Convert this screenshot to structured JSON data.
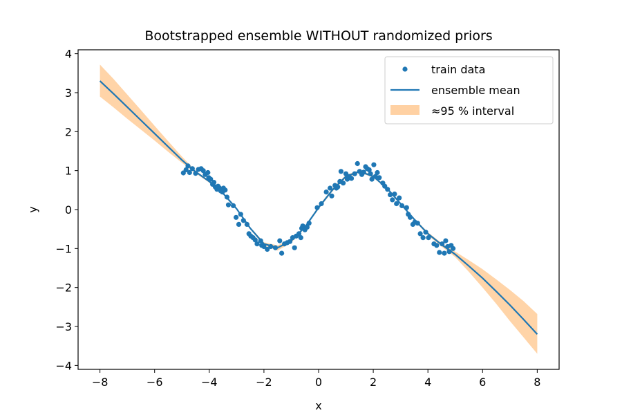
{
  "chart_data": {
    "type": "scatter",
    "title": "Bootstrapped ensemble WITHOUT randomized priors",
    "xlabel": "x",
    "ylabel": "y",
    "xlim": [
      -8.8,
      8.8
    ],
    "ylim": [
      -4.1,
      4.1
    ],
    "xticks": [
      -8,
      -6,
      -4,
      -2,
      0,
      2,
      4,
      6,
      8
    ],
    "yticks": [
      -4,
      -3,
      -2,
      -1,
      0,
      1,
      2,
      3,
      4
    ],
    "tick_labels_x": [
      "−8",
      "−6",
      "−4",
      "−2",
      "0",
      "2",
      "4",
      "6",
      "8"
    ],
    "tick_labels_y": [
      "−4",
      "−3",
      "−2",
      "−1",
      "0",
      "1",
      "2",
      "3",
      "4"
    ],
    "legend_position": "upper-right",
    "colors": {
      "points": "#1f77b4",
      "mean": "#1f77b4",
      "band": "#ffcc99"
    },
    "series": [
      {
        "name": "train data",
        "kind": "scatter",
        "points": [
          [
            -4.95,
            0.94
          ],
          [
            -4.85,
            1.02
          ],
          [
            -4.78,
            1.12
          ],
          [
            -4.72,
            0.95
          ],
          [
            -4.62,
            1.05
          ],
          [
            -4.5,
            0.93
          ],
          [
            -4.4,
            1.03
          ],
          [
            -4.3,
            1.05
          ],
          [
            -4.22,
            1.0
          ],
          [
            -4.15,
            0.9
          ],
          [
            -4.05,
            0.95
          ],
          [
            -4.02,
            0.82
          ],
          [
            -3.95,
            0.78
          ],
          [
            -3.88,
            0.65
          ],
          [
            -3.83,
            0.7
          ],
          [
            -3.78,
            0.58
          ],
          [
            -3.72,
            0.52
          ],
          [
            -3.68,
            0.6
          ],
          [
            -3.62,
            0.55
          ],
          [
            -3.58,
            0.48
          ],
          [
            -3.52,
            0.45
          ],
          [
            -3.48,
            0.55
          ],
          [
            -3.42,
            0.5
          ],
          [
            -3.35,
            0.32
          ],
          [
            -3.3,
            0.12
          ],
          [
            -3.12,
            0.1
          ],
          [
            -3.02,
            -0.2
          ],
          [
            -2.92,
            -0.38
          ],
          [
            -2.85,
            -0.12
          ],
          [
            -2.75,
            -0.28
          ],
          [
            -2.62,
            -0.38
          ],
          [
            -2.55,
            -0.62
          ],
          [
            -2.48,
            -0.68
          ],
          [
            -2.4,
            -0.72
          ],
          [
            -2.32,
            -0.78
          ],
          [
            -2.25,
            -0.88
          ],
          [
            -2.12,
            -0.8
          ],
          [
            -2.08,
            -0.92
          ],
          [
            -2.0,
            -0.95
          ],
          [
            -1.88,
            -1.02
          ],
          [
            -1.75,
            -0.95
          ],
          [
            -1.58,
            -0.98
          ],
          [
            -1.42,
            -0.8
          ],
          [
            -1.35,
            -1.12
          ],
          [
            -1.25,
            -0.88
          ],
          [
            -1.15,
            -0.85
          ],
          [
            -1.05,
            -0.82
          ],
          [
            -0.95,
            -0.72
          ],
          [
            -0.88,
            -0.98
          ],
          [
            -0.82,
            -0.68
          ],
          [
            -0.72,
            -0.62
          ],
          [
            -0.65,
            -0.72
          ],
          [
            -0.62,
            -0.48
          ],
          [
            -0.58,
            -0.42
          ],
          [
            -0.5,
            -0.52
          ],
          [
            -0.42,
            -0.45
          ],
          [
            -0.35,
            -0.35
          ],
          [
            -0.05,
            0.05
          ],
          [
            0.1,
            0.15
          ],
          [
            0.28,
            0.45
          ],
          [
            0.42,
            0.55
          ],
          [
            0.48,
            0.35
          ],
          [
            0.6,
            0.62
          ],
          [
            0.65,
            0.55
          ],
          [
            0.7,
            0.58
          ],
          [
            0.78,
            0.72
          ],
          [
            0.82,
            0.98
          ],
          [
            0.9,
            0.68
          ],
          [
            1.0,
            0.92
          ],
          [
            1.05,
            0.78
          ],
          [
            1.12,
            0.85
          ],
          [
            1.2,
            0.8
          ],
          [
            1.32,
            0.92
          ],
          [
            1.42,
            1.18
          ],
          [
            1.5,
            0.98
          ],
          [
            1.58,
            0.9
          ],
          [
            1.65,
            0.96
          ],
          [
            1.72,
            1.1
          ],
          [
            1.78,
            1.05
          ],
          [
            1.85,
            1.02
          ],
          [
            1.9,
            0.92
          ],
          [
            1.95,
            0.78
          ],
          [
            2.02,
            1.15
          ],
          [
            2.08,
            0.85
          ],
          [
            2.15,
            0.95
          ],
          [
            2.22,
            0.82
          ],
          [
            2.35,
            0.68
          ],
          [
            2.42,
            0.6
          ],
          [
            2.52,
            0.52
          ],
          [
            2.62,
            0.38
          ],
          [
            2.7,
            0.25
          ],
          [
            2.78,
            0.4
          ],
          [
            2.85,
            0.15
          ],
          [
            2.95,
            0.3
          ],
          [
            3.05,
            0.1
          ],
          [
            3.22,
            0.05
          ],
          [
            3.28,
            -0.12
          ],
          [
            3.35,
            -0.2
          ],
          [
            3.45,
            -0.38
          ],
          [
            3.52,
            -0.32
          ],
          [
            3.62,
            -0.35
          ],
          [
            3.72,
            -0.62
          ],
          [
            3.82,
            -0.72
          ],
          [
            3.92,
            -0.58
          ],
          [
            4.02,
            -0.72
          ],
          [
            4.22,
            -0.88
          ],
          [
            4.32,
            -0.92
          ],
          [
            4.42,
            -1.1
          ],
          [
            4.52,
            -0.88
          ],
          [
            4.6,
            -1.12
          ],
          [
            4.65,
            -0.8
          ],
          [
            4.72,
            -0.95
          ],
          [
            4.78,
            -1.08
          ],
          [
            4.85,
            -0.92
          ],
          [
            4.92,
            -1.0
          ]
        ]
      },
      {
        "name": "ensemble mean",
        "kind": "line"
      },
      {
        "name": "≈95 % interval",
        "kind": "band"
      }
    ],
    "band_x": [
      -8.0,
      -7.5,
      -7.0,
      -6.5,
      -6.0,
      -5.5,
      -5.0,
      -4.5,
      -4.0,
      -3.5,
      -3.0,
      -2.5,
      -2.0,
      -1.5,
      -1.0,
      -0.5,
      0.0,
      0.5,
      1.0,
      1.5,
      2.0,
      2.5,
      3.0,
      3.5,
      4.0,
      4.5,
      5.0,
      5.5,
      6.0,
      6.5,
      7.0,
      7.5,
      8.0
    ],
    "mean_y": [
      3.3,
      2.97,
      2.63,
      2.29,
      1.95,
      1.61,
      1.27,
      0.97,
      0.72,
      0.42,
      0.02,
      -0.48,
      -0.88,
      -0.98,
      -0.8,
      -0.45,
      0.05,
      0.5,
      0.85,
      0.98,
      0.85,
      0.55,
      0.15,
      -0.25,
      -0.62,
      -0.9,
      -1.15,
      -1.45,
      -1.76,
      -2.1,
      -2.45,
      -2.82,
      -3.2
    ],
    "band_upper": [
      3.72,
      3.35,
      2.95,
      2.55,
      2.15,
      1.75,
      1.36,
      1.0,
      0.75,
      0.45,
      0.05,
      -0.45,
      -0.84,
      -0.92,
      -0.76,
      -0.42,
      0.09,
      0.54,
      0.89,
      1.01,
      0.88,
      0.58,
      0.18,
      -0.22,
      -0.58,
      -0.86,
      -1.08,
      -1.3,
      -1.53,
      -1.79,
      -2.06,
      -2.35,
      -2.68
    ],
    "band_lower": [
      2.9,
      2.62,
      2.33,
      2.05,
      1.77,
      1.48,
      1.2,
      0.93,
      0.69,
      0.39,
      -0.01,
      -0.51,
      -0.92,
      -1.05,
      -0.85,
      -0.48,
      0.01,
      0.46,
      0.81,
      0.95,
      0.82,
      0.52,
      0.12,
      -0.28,
      -0.66,
      -0.95,
      -1.22,
      -1.6,
      -2.0,
      -2.42,
      -2.86,
      -3.28,
      -3.7
    ]
  }
}
